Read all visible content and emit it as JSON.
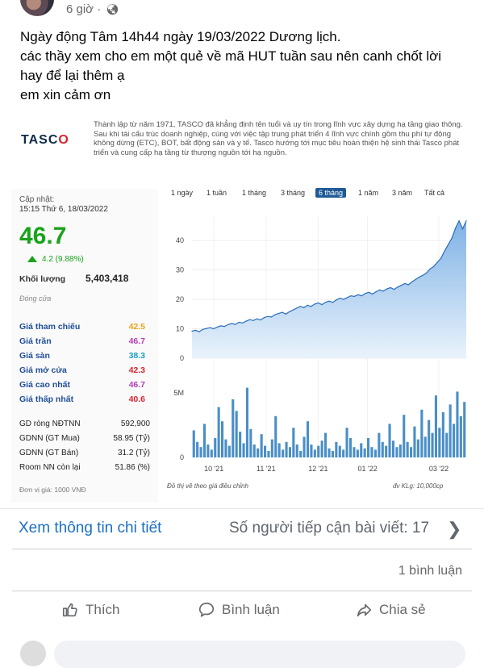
{
  "post": {
    "time": "6 giờ ·",
    "lines": [
      "Ngày động Tâm 14h44 ngày 19/03/2022 Dương lịch.",
      "các thầy xem cho em một quẻ về mã HUT tuần sau nên canh chốt lời",
      "hay để lại thêm ạ",
      "em xin cảm ơn"
    ]
  },
  "embed": {
    "logo_main": "TASC",
    "logo_accent": "O",
    "description": "Thành lập từ năm 1971, TASCO đã khẳng định tên tuổi và uy tín trong lĩnh vực xây dựng hạ tầng giao thông. Sau khi tái cấu trúc doanh nghiệp, cùng với việc tập trung phát triển 4 lĩnh vực chính gồm thu phí tự động không dừng (ETC), BOT, bất động sản và y tế. Tasco hướng tới mục tiêu hoàn thiện hệ sinh thái Tasco phát triển và cung cấp hạ tầng từ thượng nguồn tới hạ nguồn.",
    "update_label": "Cập nhật:",
    "update_time": "15:15 Thứ 6, 18/03/2022",
    "price": "46.7",
    "change": "4.2 (9.88%)",
    "volume_label": "Khối lượng",
    "volume_value": "5,403,418",
    "status": "Đóng cửa",
    "price_rows": [
      {
        "label": "Giá tham chiếu",
        "value": "42.5",
        "color": "#e8a317"
      },
      {
        "label": "Giá trần",
        "value": "46.7",
        "color": "#b23fb5"
      },
      {
        "label": "Giá sàn",
        "value": "38.3",
        "color": "#1aa0c6"
      },
      {
        "label": "Giá mở cửa",
        "value": "42.3",
        "color": "#d9232d"
      },
      {
        "label": "Giá cao nhất",
        "value": "46.7",
        "color": "#b23fb5"
      },
      {
        "label": "Giá thấp nhất",
        "value": "40.6",
        "color": "#d9232d"
      }
    ],
    "foreign_rows": [
      {
        "label": "GD ròng NĐTNN",
        "value": "592,900"
      },
      {
        "label": "GDNN (GT Mua)",
        "value": "58.95 (Tỷ)"
      },
      {
        "label": "GDNN (GT Bán)",
        "value": "31.2 (Tỷ)"
      },
      {
        "label": "Room NN còn lại",
        "value": "51.86 (%)"
      }
    ],
    "unit": "Đơn vị giá: 1000 VNĐ",
    "tabs": [
      "1 ngày",
      "1 tuần",
      "1 tháng",
      "3 tháng",
      "6 tháng",
      "1 năm",
      "3 năm",
      "Tất cả"
    ],
    "active_tab": "6 tháng",
    "chart_note": "Đồ thị vẽ theo giá điều chỉnh",
    "volume_unit": "đv KLg: 10,000cp"
  },
  "chart_data": {
    "type": "area",
    "price_axis": {
      "ticks": [
        "40",
        "30",
        "20",
        "10",
        "0"
      ],
      "ylim": [
        0,
        48
      ]
    },
    "volume_axis": {
      "ticks": [
        "5M",
        "0"
      ]
    },
    "x_ticks": [
      "10 '21",
      "11 '21",
      "12 '21",
      "01 '22",
      "03 '22"
    ],
    "price_series": [
      9.2,
      9.5,
      9.0,
      9.8,
      10.1,
      10.4,
      10.0,
      10.6,
      11.0,
      10.8,
      11.4,
      11.8,
      11.5,
      12.2,
      12.0,
      12.6,
      13.1,
      12.8,
      13.4,
      13.0,
      13.8,
      14.2,
      14.0,
      14.8,
      15.2,
      15.6,
      15.0,
      15.8,
      16.4,
      17.0,
      17.6,
      17.2,
      18.0,
      17.6,
      18.4,
      18.8,
      18.2,
      19.0,
      19.4,
      19.0,
      19.8,
      20.4,
      20.0,
      20.6,
      21.2,
      21.0,
      21.6,
      21.2,
      22.0,
      22.4,
      21.8,
      22.6,
      23.2,
      22.8,
      23.6,
      24.0,
      23.4,
      24.2,
      24.8,
      25.4,
      25.0,
      26.0,
      26.8,
      27.6,
      28.2,
      29.0,
      30.4,
      31.2,
      32.6,
      34.0,
      36.5,
      38.6,
      40.8,
      44.2,
      46.7,
      44.0,
      46.7
    ],
    "volume_series": [
      2.1,
      1.2,
      0.8,
      2.6,
      1.0,
      0.6,
      1.5,
      3.9,
      2.8,
      1.4,
      0.9,
      4.5,
      3.6,
      2.0,
      1.1,
      5.4,
      2.2,
      1.0,
      0.7,
      1.8,
      0.9,
      0.5,
      1.4,
      3.2,
      1.1,
      0.6,
      1.2,
      0.8,
      2.3,
      1.0,
      0.5,
      1.6,
      2.8,
      1.0,
      0.6,
      0.9,
      1.3,
      1.9,
      0.7,
      0.5,
      1.2,
      0.9,
      0.6,
      2.3,
      1.5,
      0.8,
      0.6,
      1.1,
      0.7,
      1.5,
      0.8,
      0.6,
      1.9,
      1.2,
      0.9,
      2.6,
      1.3,
      0.8,
      1.0,
      3.3,
      1.2,
      0.8,
      2.4,
      1.4,
      3.7,
      1.6,
      2.9,
      1.9,
      4.8,
      2.3,
      3.5,
      1.9,
      4.1,
      2.6,
      5.1,
      3.2,
      4.3
    ]
  },
  "actions": {
    "detail_link": "Xem thông tin chi tiết",
    "reach": "Số người tiếp cận bài viết: 17",
    "comments": "1 bình luận",
    "like": "Thích",
    "comment": "Bình luận",
    "share": "Chia sẻ"
  }
}
